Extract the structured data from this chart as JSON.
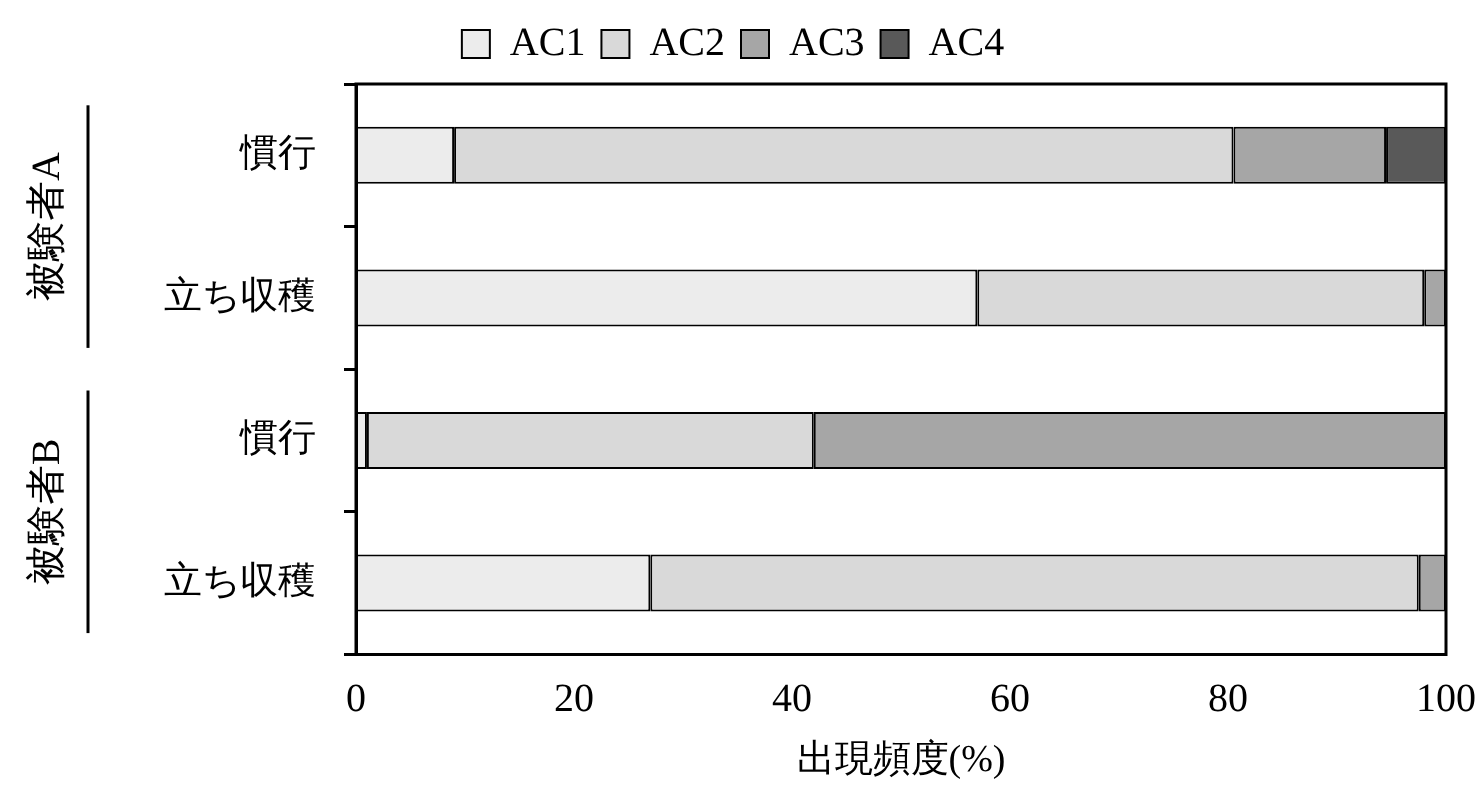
{
  "chart_data": {
    "type": "bar",
    "orientation": "horizontal",
    "stacked": true,
    "categories": [
      "慣行",
      "立ち収穫",
      "慣行",
      "立ち収穫"
    ],
    "series": [
      {
        "name": "AC1",
        "color": "#ececec",
        "values": [
          9,
          57,
          1,
          27
        ]
      },
      {
        "name": "AC2",
        "color": "#d9d9d9",
        "values": [
          71.5,
          41,
          41,
          70.5
        ]
      },
      {
        "name": "AC3",
        "color": "#a6a6a6",
        "values": [
          14,
          2,
          58,
          2.5
        ]
      },
      {
        "name": "AC4",
        "color": "#595959",
        "values": [
          5.5,
          0,
          0,
          0
        ]
      }
    ],
    "xlim": [
      0,
      100
    ],
    "xticks": [
      0,
      20,
      40,
      60,
      80,
      100
    ],
    "xlabel": "出現頻度(%)",
    "annotations": [
      "被験者A",
      "被験者B"
    ],
    "legend": "top",
    "grid": false
  }
}
